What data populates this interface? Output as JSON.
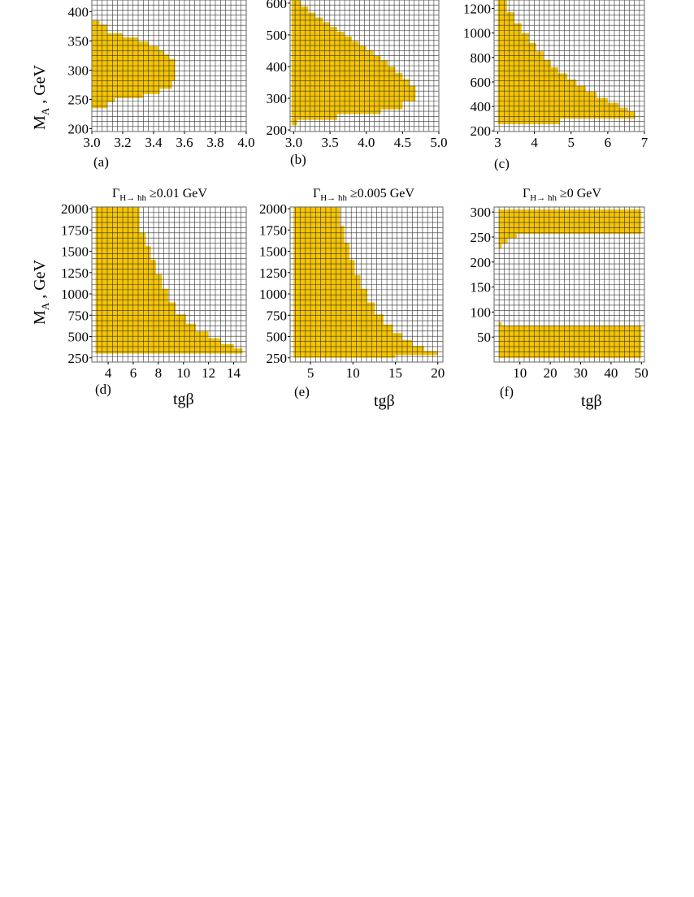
{
  "figure": {
    "ylabel_main": "M",
    "ylabel_sub": "A",
    "ylabel_unit": " , GeV",
    "xlabel": "tgβ",
    "region_color": "#F5C400",
    "grid_color": "#333333"
  },
  "chart_data": [
    {
      "type": "heatmap",
      "panel_label": "(a)",
      "title": "",
      "xlim": [
        3.0,
        4.0
      ],
      "ylim": [
        195,
        420
      ],
      "xticks": [
        3.0,
        3.2,
        3.4,
        3.6,
        3.8,
        4.0
      ],
      "xtick_labels": [
        "3.0",
        "3.2",
        "3.4",
        "3.6",
        "3.8",
        "4.0"
      ],
      "yticks": [
        200,
        250,
        300,
        350,
        400
      ],
      "ytick_labels": [
        "200",
        "250",
        "300",
        "350",
        "400"
      ],
      "grid_x": 30,
      "grid_y": 26,
      "region": [
        [
          3.0,
          385
        ],
        [
          3.05,
          385
        ],
        [
          3.05,
          378
        ],
        [
          3.1,
          378
        ],
        [
          3.1,
          363
        ],
        [
          3.2,
          363
        ],
        [
          3.2,
          356
        ],
        [
          3.3,
          356
        ],
        [
          3.3,
          349
        ],
        [
          3.37,
          349
        ],
        [
          3.37,
          341
        ],
        [
          3.43,
          341
        ],
        [
          3.43,
          334
        ],
        [
          3.47,
          334
        ],
        [
          3.47,
          327
        ],
        [
          3.5,
          327
        ],
        [
          3.5,
          319
        ],
        [
          3.54,
          319
        ],
        [
          3.54,
          282
        ],
        [
          3.52,
          282
        ],
        [
          3.52,
          268
        ],
        [
          3.44,
          268
        ],
        [
          3.44,
          259
        ],
        [
          3.33,
          259
        ],
        [
          3.33,
          252
        ],
        [
          3.15,
          252
        ],
        [
          3.15,
          245
        ],
        [
          3.1,
          245
        ],
        [
          3.1,
          235
        ],
        [
          3.0,
          235
        ]
      ]
    },
    {
      "type": "heatmap",
      "panel_label": "(b)",
      "title": "",
      "xlim": [
        2.95,
        5.0
      ],
      "ylim": [
        195,
        610
      ],
      "xticks": [
        3.0,
        3.5,
        4.0,
        4.5,
        5.0
      ],
      "xtick_labels": [
        "3.0",
        "3.5",
        "4.0",
        "4.5",
        "5.0"
      ],
      "yticks": [
        200,
        300,
        400,
        500,
        600
      ],
      "ytick_labels": [
        "200",
        "300",
        "400",
        "500",
        "600"
      ],
      "grid_x": 30,
      "grid_y": 26,
      "region": [
        [
          2.97,
          610
        ],
        [
          3.1,
          610
        ],
        [
          3.1,
          590
        ],
        [
          3.2,
          590
        ],
        [
          3.2,
          570
        ],
        [
          3.3,
          570
        ],
        [
          3.3,
          555
        ],
        [
          3.4,
          555
        ],
        [
          3.4,
          540
        ],
        [
          3.5,
          540
        ],
        [
          3.5,
          525
        ],
        [
          3.6,
          525
        ],
        [
          3.6,
          510
        ],
        [
          3.7,
          510
        ],
        [
          3.7,
          495
        ],
        [
          3.8,
          495
        ],
        [
          3.8,
          480
        ],
        [
          3.9,
          480
        ],
        [
          3.9,
          465
        ],
        [
          4.0,
          465
        ],
        [
          4.0,
          450
        ],
        [
          4.1,
          450
        ],
        [
          4.1,
          435
        ],
        [
          4.2,
          435
        ],
        [
          4.2,
          420
        ],
        [
          4.3,
          420
        ],
        [
          4.3,
          400
        ],
        [
          4.4,
          400
        ],
        [
          4.4,
          380
        ],
        [
          4.5,
          380
        ],
        [
          4.5,
          360
        ],
        [
          4.6,
          360
        ],
        [
          4.6,
          340
        ],
        [
          4.68,
          340
        ],
        [
          4.68,
          290
        ],
        [
          4.5,
          290
        ],
        [
          4.5,
          265
        ],
        [
          4.2,
          265
        ],
        [
          4.2,
          250
        ],
        [
          3.6,
          250
        ],
        [
          3.6,
          232
        ],
        [
          3.05,
          232
        ],
        [
          3.05,
          215
        ],
        [
          2.97,
          215
        ]
      ]
    },
    {
      "type": "heatmap",
      "panel_label": "(c)",
      "title": "",
      "xlim": [
        2.9,
        7.0
      ],
      "ylim": [
        195,
        1270
      ],
      "xticks": [
        3,
        4,
        5,
        6,
        7
      ],
      "xtick_labels": [
        "3",
        "4",
        "5",
        "6",
        "7"
      ],
      "yticks": [
        200,
        400,
        600,
        800,
        1000,
        1200
      ],
      "ytick_labels": [
        "200",
        "400",
        "600",
        "800",
        "1000",
        "1200"
      ],
      "grid_x": 30,
      "grid_y": 26,
      "region": [
        [
          3.0,
          1270
        ],
        [
          3.25,
          1270
        ],
        [
          3.25,
          1170
        ],
        [
          3.45,
          1170
        ],
        [
          3.45,
          1080
        ],
        [
          3.65,
          1080
        ],
        [
          3.65,
          1000
        ],
        [
          3.85,
          1000
        ],
        [
          3.85,
          920
        ],
        [
          4.05,
          920
        ],
        [
          4.05,
          850
        ],
        [
          4.25,
          850
        ],
        [
          4.25,
          780
        ],
        [
          4.45,
          780
        ],
        [
          4.45,
          720
        ],
        [
          4.65,
          720
        ],
        [
          4.65,
          670
        ],
        [
          4.9,
          670
        ],
        [
          4.9,
          620
        ],
        [
          5.15,
          620
        ],
        [
          5.15,
          570
        ],
        [
          5.4,
          570
        ],
        [
          5.4,
          520
        ],
        [
          5.7,
          520
        ],
        [
          5.7,
          470
        ],
        [
          6.0,
          470
        ],
        [
          6.0,
          430
        ],
        [
          6.3,
          430
        ],
        [
          6.3,
          390
        ],
        [
          6.55,
          390
        ],
        [
          6.55,
          360
        ],
        [
          6.75,
          360
        ],
        [
          6.75,
          300
        ],
        [
          4.7,
          300
        ],
        [
          4.7,
          255
        ],
        [
          3.0,
          255
        ]
      ]
    },
    {
      "type": "heatmap",
      "panel_label": "(d)",
      "title": "Γ H→ hh ≥0.01 GeV",
      "title_main": "Γ",
      "title_sub": "H→ hh",
      "title_rest": " ≥0.01 GeV",
      "xlim": [
        2.7,
        15.0
      ],
      "ylim": [
        200,
        2020
      ],
      "xticks": [
        4,
        6,
        8,
        10,
        12,
        14
      ],
      "xtick_labels": [
        "4",
        "6",
        "8",
        "10",
        "12",
        "14"
      ],
      "yticks": [
        250,
        500,
        750,
        1000,
        1250,
        1500,
        1750,
        2000
      ],
      "ytick_labels": [
        "250",
        "500",
        "750",
        "1000",
        "1250",
        "1500",
        "1750",
        "2000"
      ],
      "grid_x": 30,
      "grid_y": 30,
      "xlabel": "tgβ",
      "region": [
        [
          3.0,
          2020
        ],
        [
          6.5,
          2020
        ],
        [
          6.5,
          1720
        ],
        [
          7.0,
          1720
        ],
        [
          7.0,
          1560
        ],
        [
          7.4,
          1560
        ],
        [
          7.4,
          1400
        ],
        [
          7.8,
          1400
        ],
        [
          7.8,
          1230
        ],
        [
          8.3,
          1230
        ],
        [
          8.3,
          1060
        ],
        [
          8.8,
          1060
        ],
        [
          8.8,
          900
        ],
        [
          9.4,
          900
        ],
        [
          9.4,
          760
        ],
        [
          10.2,
          760
        ],
        [
          10.2,
          650
        ],
        [
          11.0,
          650
        ],
        [
          11.0,
          560
        ],
        [
          12.0,
          560
        ],
        [
          12.0,
          480
        ],
        [
          13.0,
          480
        ],
        [
          13.0,
          410
        ],
        [
          14.0,
          410
        ],
        [
          14.0,
          360
        ],
        [
          14.7,
          360
        ],
        [
          14.7,
          300
        ],
        [
          3.0,
          300
        ]
      ]
    },
    {
      "type": "heatmap",
      "panel_label": "(e)",
      "title": "Γ H→ hh ≥0.005 GeV",
      "title_main": "Γ",
      "title_sub": "H→ hh",
      "title_rest": " ≥0.005 GeV",
      "xlim": [
        2.6,
        20.6
      ],
      "ylim": [
        200,
        2020
      ],
      "xticks": [
        5,
        10,
        15,
        20
      ],
      "xtick_labels": [
        "5",
        "10",
        "15",
        "20"
      ],
      "yticks": [
        250,
        500,
        750,
        1000,
        1250,
        1500,
        1750,
        2000
      ],
      "ytick_labels": [
        "250",
        "500",
        "750",
        "1000",
        "1250",
        "1500",
        "1750",
        "2000"
      ],
      "grid_x": 30,
      "grid_y": 30,
      "xlabel": "tgβ",
      "region": [
        [
          3.0,
          2020
        ],
        [
          8.5,
          2020
        ],
        [
          8.5,
          1800
        ],
        [
          9.0,
          1800
        ],
        [
          9.0,
          1600
        ],
        [
          9.6,
          1600
        ],
        [
          9.6,
          1400
        ],
        [
          10.2,
          1400
        ],
        [
          10.2,
          1220
        ],
        [
          10.9,
          1220
        ],
        [
          10.9,
          1060
        ],
        [
          11.7,
          1060
        ],
        [
          11.7,
          900
        ],
        [
          12.6,
          900
        ],
        [
          12.6,
          760
        ],
        [
          13.6,
          760
        ],
        [
          13.6,
          640
        ],
        [
          14.7,
          640
        ],
        [
          14.7,
          540
        ],
        [
          15.8,
          540
        ],
        [
          15.8,
          460
        ],
        [
          17.0,
          460
        ],
        [
          17.0,
          390
        ],
        [
          18.4,
          390
        ],
        [
          18.4,
          330
        ],
        [
          20.0,
          330
        ],
        [
          20.0,
          280
        ],
        [
          15.0,
          280
        ],
        [
          15.0,
          250
        ],
        [
          3.0,
          250
        ]
      ]
    },
    {
      "type": "heatmap",
      "panel_label": "(f)",
      "title": "Γ H→ hh ≥0 GeV",
      "title_main": "Γ",
      "title_sub": "H→ hh",
      "title_rest": " ≥0 GeV",
      "xlim": [
        1.5,
        51.0
      ],
      "ylim": [
        0,
        310
      ],
      "xticks": [
        10,
        20,
        30,
        40,
        50
      ],
      "xtick_labels": [
        "10",
        "20",
        "30",
        "40",
        "50"
      ],
      "yticks": [
        50,
        100,
        150,
        200,
        250,
        300
      ],
      "ytick_labels": [
        "50",
        "100",
        "150",
        "200",
        "250",
        "300"
      ],
      "grid_x": 30,
      "grid_y": 30,
      "xlabel": "tgβ",
      "region": [
        [
          3,
          305
        ],
        [
          50,
          305
        ],
        [
          50,
          256
        ],
        [
          9,
          256
        ],
        [
          9,
          247
        ],
        [
          6,
          247
        ],
        [
          6,
          237
        ],
        [
          4,
          237
        ],
        [
          4,
          227
        ],
        [
          3,
          227
        ]
      ],
      "region2": [
        [
          3,
          80
        ],
        [
          4,
          80
        ],
        [
          4,
          73
        ],
        [
          50,
          73
        ],
        [
          50,
          8
        ],
        [
          3,
          8
        ]
      ]
    }
  ]
}
